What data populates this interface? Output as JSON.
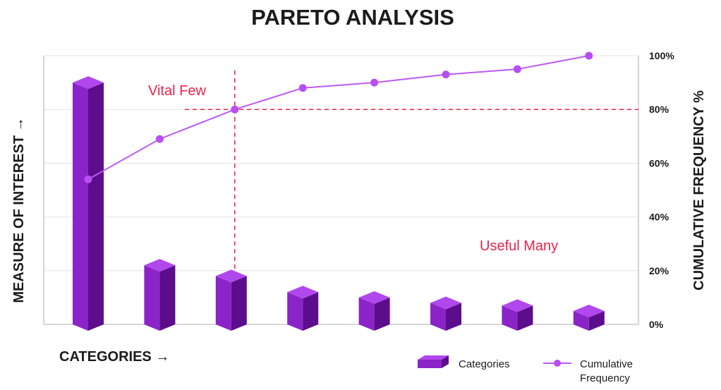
{
  "chart_data": {
    "type": "bar",
    "title": "PARETO ANALYSIS",
    "xlabel": "CATEGORIES →",
    "ylabel": "MEASURE OF INTEREST →",
    "y2label": "CUMULATIVE FREQUENCY %",
    "categories": [
      "",
      "",
      "",
      "",
      "",
      "",
      "",
      ""
    ],
    "series": [
      {
        "name": "Categories",
        "type": "bar",
        "axis": "left",
        "values": [
          90,
          22,
          18,
          12,
          10,
          8,
          7,
          5
        ]
      },
      {
        "name": "Cumulative Frequency",
        "type": "line",
        "axis": "right",
        "values": [
          54,
          69,
          80,
          88,
          90,
          93,
          95,
          100
        ]
      }
    ],
    "ylim": [
      0,
      100
    ],
    "y2lim": [
      0,
      100
    ],
    "y2_ticks": [
      "0%",
      "20%",
      "40%",
      "60%",
      "80%",
      "100%"
    ],
    "reference": {
      "y2_value": 80,
      "label": "80%",
      "category_index": 2
    },
    "annotations": [
      "Vital Few",
      "Useful Many"
    ],
    "grid": true,
    "legend_position": "bottom-right",
    "colors": {
      "bar_front": "#8a24c8",
      "bar_side": "#5c0d8c",
      "bar_top": "#b048ee",
      "line": "#bb5bf4",
      "marker": "#b84ef5",
      "reference": "#e8244a",
      "grid": "#e3e3e3",
      "text": "#1b1b1b"
    }
  }
}
